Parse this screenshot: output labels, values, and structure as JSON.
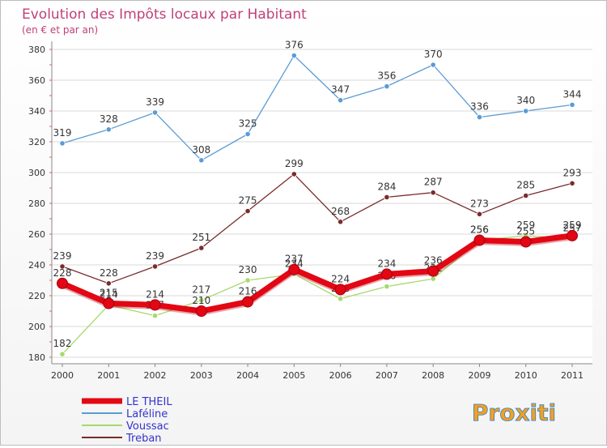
{
  "chart_data": {
    "type": "line",
    "title": "Evolution des Impôts locaux par Habitant",
    "subtitle": "(en € et par an)",
    "x": [
      "2000",
      "2001",
      "2002",
      "2003",
      "2004",
      "2005",
      "2006",
      "2007",
      "2008",
      "2009",
      "2010",
      "2011"
    ],
    "ylim": [
      180,
      380
    ],
    "yticks": [
      180,
      200,
      220,
      240,
      260,
      280,
      300,
      320,
      340,
      360,
      380
    ],
    "grid": "horizontal",
    "legend_position": "bottom-left",
    "series": [
      {
        "name": "LE THEIL",
        "color": "#e30613",
        "values": [
          228,
          215,
          214,
          210,
          216,
          237,
          224,
          234,
          236,
          256,
          255,
          259
        ]
      },
      {
        "name": "Laféline",
        "color": "#5b9bd5",
        "values": [
          319,
          328,
          339,
          308,
          325,
          376,
          347,
          356,
          370,
          336,
          340,
          344
        ]
      },
      {
        "name": "Voussac",
        "color": "#a6d96a",
        "values": [
          182,
          214,
          207,
          217,
          230,
          234,
          218,
          226,
          231,
          256,
          259,
          257
        ]
      },
      {
        "name": "Treban",
        "color": "#7a2b2b",
        "values": [
          239,
          228,
          239,
          251,
          275,
          299,
          268,
          284,
          287,
          273,
          285,
          293
        ]
      }
    ]
  },
  "logo": {
    "text": "Proxiti"
  }
}
